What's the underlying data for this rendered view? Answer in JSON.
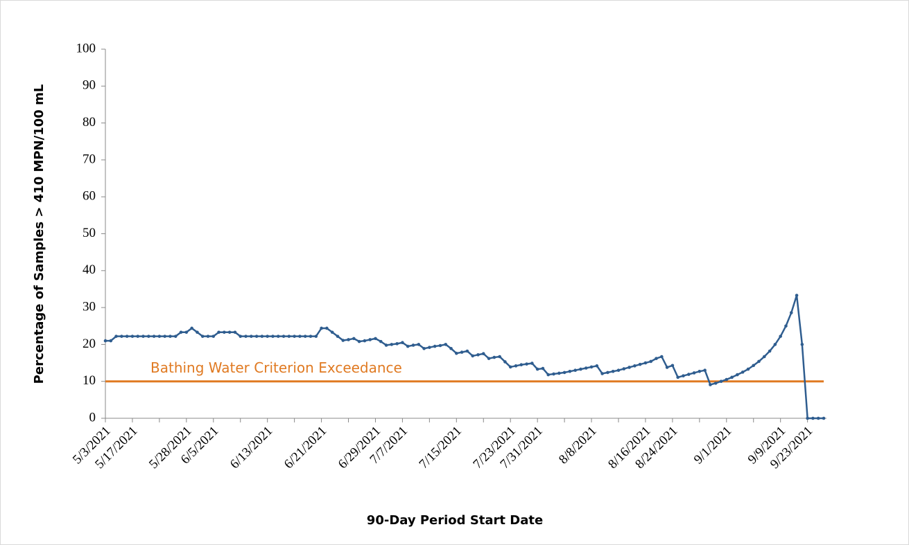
{
  "chart_data": {
    "type": "line",
    "x_label": "90-Day Period Start Date",
    "y_label": "Percentage of Samples > 410 MPN/100 mL",
    "categories": [
      "5/3/2021",
      null,
      null,
      null,
      null,
      "5/17/2021",
      null,
      null,
      null,
      null,
      null,
      null,
      null,
      null,
      null,
      "5/28/2021",
      null,
      null,
      null,
      null,
      "6/5/2021",
      null,
      null,
      null,
      null,
      null,
      null,
      null,
      null,
      null,
      "6/13/2021",
      null,
      null,
      null,
      null,
      null,
      null,
      null,
      null,
      null,
      "6/21/2021",
      null,
      null,
      null,
      null,
      null,
      null,
      null,
      null,
      null,
      "6/29/2021",
      null,
      null,
      null,
      null,
      "7/7/2021",
      null,
      null,
      null,
      null,
      null,
      null,
      null,
      null,
      null,
      "7/15/2021",
      null,
      null,
      null,
      null,
      null,
      null,
      null,
      null,
      null,
      "7/23/2021",
      null,
      null,
      null,
      null,
      "7/31/2021",
      null,
      null,
      null,
      null,
      null,
      null,
      null,
      null,
      null,
      "8/8/2021",
      null,
      null,
      null,
      null,
      null,
      null,
      null,
      null,
      null,
      "8/16/2021",
      null,
      null,
      null,
      null,
      "8/24/2021",
      null,
      null,
      null,
      null,
      null,
      null,
      null,
      null,
      null,
      "9/1/2021",
      null,
      null,
      null,
      null,
      null,
      null,
      null,
      null,
      null,
      "9/9/2021",
      null,
      null,
      null,
      null,
      "9/23/2021",
      null,
      null,
      null
    ],
    "series": [
      {
        "name": "Percentage of Samples",
        "color": "#2f5d8f",
        "values": [
          21,
          21,
          22.2,
          22.2,
          22.2,
          22.2,
          22.2,
          22.2,
          22.2,
          22.2,
          22.2,
          22.2,
          22.2,
          22.2,
          23.3,
          23.3,
          24.4,
          23.3,
          22.2,
          22.2,
          22.2,
          23.3,
          23.3,
          23.3,
          23.3,
          22.2,
          22.2,
          22.2,
          22.2,
          22.2,
          22.2,
          22.2,
          22.2,
          22.2,
          22.2,
          22.2,
          22.2,
          22.2,
          22.2,
          22.2,
          24.4,
          24.4,
          23.3,
          22.2,
          21.1,
          21.3,
          21.6,
          20.8,
          21,
          21.3,
          21.6,
          20.8,
          19.8,
          20,
          20.2,
          20.5,
          19.5,
          19.8,
          20,
          18.9,
          19.2,
          19.5,
          19.7,
          20,
          18.9,
          17.6,
          17.9,
          18.2,
          16.9,
          17.2,
          17.5,
          16.2,
          16.5,
          16.7,
          15.3,
          13.9,
          14.2,
          14.5,
          14.7,
          14.9,
          13.3,
          13.5,
          11.8,
          12,
          12.2,
          12.4,
          12.7,
          13,
          13.3,
          13.6,
          13.9,
          14.2,
          12.1,
          12.4,
          12.7,
          13,
          13.4,
          13.8,
          14.2,
          14.6,
          15,
          15.4,
          16.2,
          16.7,
          13.8,
          14.3,
          11.1,
          11.5,
          11.9,
          12.3,
          12.7,
          13,
          9.1,
          9.5,
          10,
          10.5,
          11.1,
          11.8,
          12.5,
          13.3,
          14.3,
          15.4,
          16.7,
          18.2,
          20,
          22.2,
          25,
          28.6,
          33.3,
          20,
          0,
          0,
          0,
          0
        ]
      }
    ],
    "threshold": {
      "value": 10,
      "label": "Bathing Water Criterion Exceedance",
      "color": "#e07a22"
    },
    "ylim": [
      0,
      100
    ],
    "yticks": [
      0,
      10,
      20,
      30,
      40,
      50,
      60,
      70,
      80,
      90,
      100
    ]
  }
}
